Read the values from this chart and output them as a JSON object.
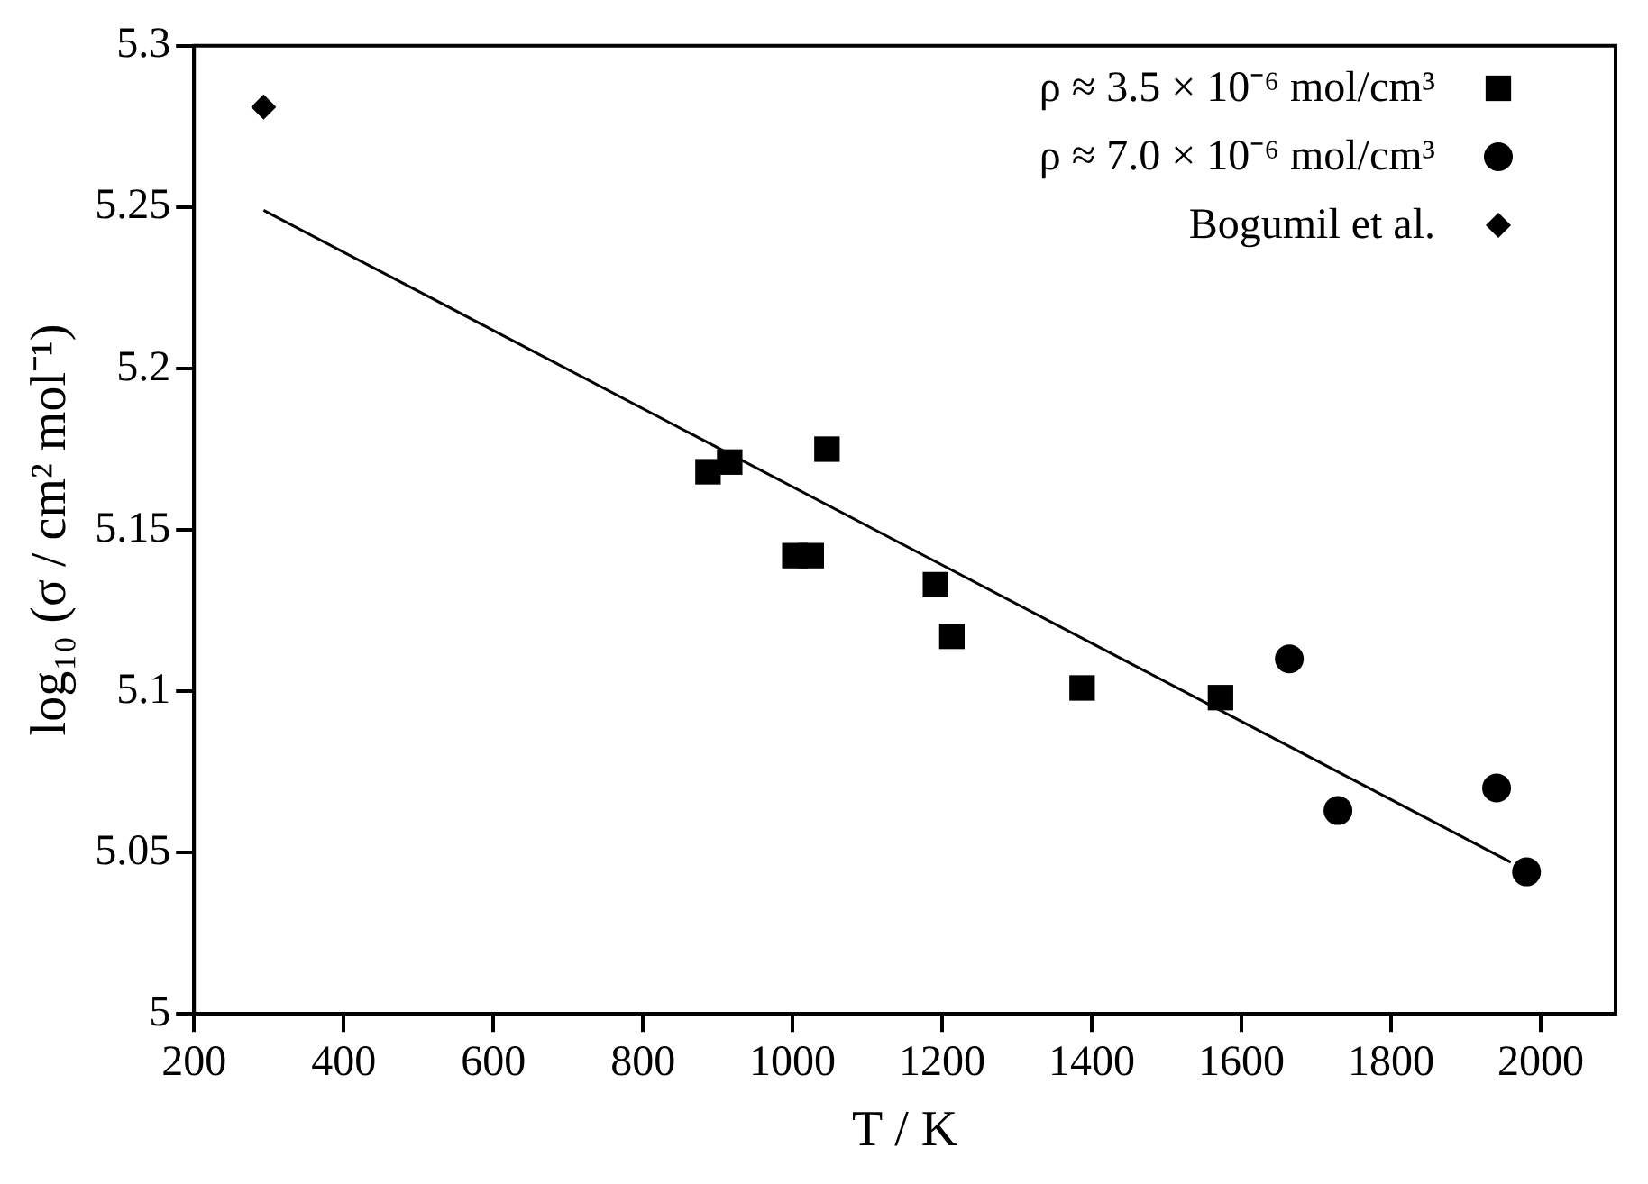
{
  "chart_data": {
    "type": "scatter",
    "xlabel": "T / K",
    "ylabel": "log₁₀ (σ / cm² mol⁻¹)",
    "xlim": [
      200,
      2100
    ],
    "xticks": [
      200,
      400,
      600,
      800,
      1000,
      1200,
      1400,
      1600,
      1800,
      2000
    ],
    "ylim": [
      5,
      5.3
    ],
    "yticks": [
      5,
      5.05,
      5.1,
      5.15,
      5.2,
      5.25,
      5.3
    ],
    "grid": false,
    "legend": "top right",
    "series": [
      {
        "name": "ρ ≈ 3.5 × 10⁻⁶ mol/cm³",
        "color": "#000000",
        "marker": "square",
        "x": [
          887,
          916,
          1046,
          1003,
          1025,
          1191,
          1213,
          1387,
          1572
        ],
        "values": [
          5.168,
          5.171,
          5.175,
          5.142,
          5.142,
          5.133,
          5.117,
          5.101,
          5.098
        ]
      },
      {
        "name": "ρ ≈ 7.0 × 10⁻⁶ mol/cm³",
        "color": "#000000",
        "marker": "circle",
        "x": [
          1664,
          1729,
          1941,
          1981
        ],
        "values": [
          5.11,
          5.063,
          5.07,
          5.044
        ]
      },
      {
        "name": "Bogumil et al.",
        "color": "#000000",
        "marker": "diamond",
        "x": [
          293
        ],
        "values": [
          5.281
        ]
      },
      {
        "type": "line",
        "color": "#000000",
        "marker": "none",
        "x": [
          293,
          1960
        ],
        "values": [
          5.249,
          5.047
        ]
      }
    ]
  }
}
